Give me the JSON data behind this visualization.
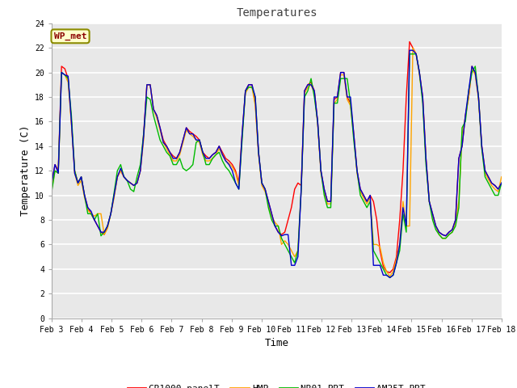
{
  "title": "Temperatures",
  "xlabel": "Time",
  "ylabel": "Temperature (C)",
  "ylim": [
    0,
    24
  ],
  "yticks": [
    0,
    2,
    4,
    6,
    8,
    10,
    12,
    14,
    16,
    18,
    20,
    22,
    24
  ],
  "x_labels": [
    "Feb 3",
    "Feb 4",
    "Feb 5",
    "Feb 6",
    "Feb 7",
    "Feb 8",
    "Feb 9",
    "Feb 10",
    "Feb 11",
    "Feb 12",
    "Feb 13",
    "Feb 14",
    "Feb 15",
    "Feb 16",
    "Feb 17",
    "Feb 18"
  ],
  "annotation": "WP_met",
  "fig_bg_color": "#ffffff",
  "plot_bg_color": "#e8e8e8",
  "grid_color": "#ffffff",
  "line_colors": {
    "CR1000 panelT": "#ff0000",
    "HMP": "#ffa500",
    "NR01 PRT": "#00bb00",
    "AM25T PRT": "#0000cc"
  },
  "line_width": 1.0,
  "cr1000": [
    11.0,
    12.5,
    12.0,
    20.5,
    20.3,
    19.5,
    16.0,
    12.0,
    11.0,
    11.5,
    10.0,
    9.0,
    8.5,
    8.0,
    7.5,
    7.0,
    6.8,
    7.5,
    8.5,
    10.0,
    11.5,
    12.0,
    11.5,
    11.2,
    11.0,
    10.8,
    11.0,
    12.0,
    15.0,
    19.0,
    19.0,
    17.0,
    16.5,
    15.5,
    14.5,
    14.0,
    13.5,
    13.2,
    13.0,
    13.5,
    14.5,
    15.5,
    15.2,
    15.0,
    14.8,
    14.5,
    13.5,
    13.2,
    13.0,
    13.3,
    13.5,
    14.0,
    13.5,
    13.0,
    12.8,
    12.5,
    12.0,
    11.0,
    15.0,
    18.5,
    19.0,
    19.0,
    17.5,
    13.5,
    11.0,
    10.5,
    9.5,
    8.5,
    7.5,
    7.0,
    6.8,
    7.0,
    8.0,
    9.0,
    10.5,
    11.0,
    10.8,
    18.5,
    19.0,
    19.2,
    18.5,
    16.0,
    12.0,
    10.5,
    9.5,
    9.5,
    17.8,
    18.0,
    20.0,
    20.0,
    18.0,
    17.5,
    15.0,
    12.0,
    10.5,
    10.0,
    9.5,
    10.0,
    9.5,
    8.0,
    5.5,
    4.2,
    3.8,
    3.7,
    4.0,
    5.0,
    8.0,
    12.0,
    18.0,
    22.5,
    22.0,
    21.5,
    20.0,
    18.0,
    13.0,
    9.5,
    8.5,
    7.5,
    7.0,
    6.8,
    6.7,
    7.0,
    7.2,
    8.0,
    13.0,
    14.0,
    16.5,
    18.0,
    20.5,
    20.0,
    18.0,
    14.0,
    12.0,
    11.5,
    11.0,
    10.8,
    10.5,
    11.0
  ],
  "hmp": [
    10.5,
    12.0,
    11.8,
    20.0,
    19.8,
    19.2,
    15.8,
    11.8,
    10.8,
    11.2,
    9.8,
    8.8,
    8.5,
    8.3,
    8.5,
    8.5,
    6.8,
    7.3,
    8.5,
    9.8,
    11.5,
    12.0,
    11.5,
    11.2,
    11.0,
    10.8,
    11.0,
    12.0,
    14.5,
    19.0,
    19.0,
    17.0,
    16.3,
    15.3,
    14.3,
    13.8,
    13.3,
    12.8,
    12.8,
    13.3,
    14.3,
    15.3,
    15.0,
    14.8,
    14.5,
    14.3,
    13.3,
    12.8,
    12.8,
    13.0,
    13.3,
    13.8,
    13.3,
    12.8,
    12.6,
    12.3,
    11.8,
    10.8,
    14.8,
    18.3,
    18.8,
    18.8,
    17.3,
    13.3,
    10.8,
    10.3,
    9.3,
    8.3,
    7.8,
    7.5,
    6.0,
    6.3,
    6.0,
    5.5,
    5.0,
    5.5,
    10.5,
    18.3,
    18.8,
    19.0,
    18.3,
    15.8,
    11.8,
    10.3,
    9.3,
    9.3,
    17.5,
    17.8,
    19.8,
    19.8,
    17.8,
    17.3,
    14.8,
    11.8,
    10.3,
    9.8,
    9.3,
    9.8,
    6.0,
    6.0,
    5.8,
    4.5,
    3.8,
    3.4,
    3.8,
    4.8,
    6.0,
    9.5,
    7.5,
    7.5,
    22.0,
    21.5,
    19.8,
    17.8,
    12.8,
    9.5,
    8.3,
    7.5,
    6.8,
    6.5,
    6.5,
    6.8,
    7.0,
    7.8,
    9.5,
    15.0,
    16.3,
    18.0,
    20.3,
    19.8,
    17.8,
    13.8,
    11.8,
    11.3,
    10.8,
    10.5,
    10.3,
    11.5
  ],
  "nr01": [
    10.3,
    12.0,
    11.8,
    20.0,
    19.8,
    19.5,
    16.5,
    12.0,
    11.0,
    11.5,
    10.0,
    8.5,
    8.5,
    8.0,
    8.5,
    6.7,
    7.0,
    7.5,
    8.5,
    10.2,
    12.0,
    12.5,
    11.5,
    11.2,
    10.5,
    10.3,
    11.5,
    12.5,
    15.0,
    18.0,
    17.8,
    16.5,
    15.5,
    14.5,
    14.0,
    13.5,
    13.2,
    12.5,
    12.5,
    13.0,
    12.2,
    12.0,
    12.2,
    12.5,
    14.3,
    14.5,
    13.5,
    12.5,
    12.5,
    13.0,
    13.3,
    13.5,
    12.8,
    12.3,
    12.0,
    11.5,
    11.0,
    10.5,
    14.5,
    18.5,
    18.8,
    18.8,
    18.0,
    13.5,
    11.0,
    10.5,
    9.0,
    8.0,
    7.5,
    7.5,
    6.5,
    6.0,
    5.5,
    5.0,
    4.5,
    5.5,
    10.5,
    18.0,
    18.5,
    19.5,
    18.0,
    16.0,
    12.0,
    10.0,
    9.0,
    9.0,
    17.5,
    17.5,
    19.5,
    19.5,
    19.5,
    17.5,
    14.5,
    12.0,
    10.0,
    9.5,
    9.0,
    9.5,
    5.5,
    5.0,
    4.5,
    4.0,
    3.5,
    3.3,
    3.5,
    4.5,
    5.5,
    8.5,
    7.0,
    21.5,
    21.5,
    21.5,
    20.0,
    17.5,
    12.5,
    9.5,
    8.0,
    7.2,
    6.8,
    6.5,
    6.5,
    6.8,
    7.0,
    7.5,
    9.0,
    15.5,
    16.0,
    18.5,
    20.0,
    20.5,
    18.0,
    13.8,
    11.5,
    11.0,
    10.5,
    10.0,
    10.0,
    11.0
  ],
  "am25t": [
    11.0,
    12.5,
    11.8,
    20.0,
    19.8,
    19.7,
    16.0,
    11.8,
    11.0,
    11.5,
    10.0,
    9.0,
    8.7,
    8.0,
    7.5,
    7.0,
    7.0,
    7.5,
    8.5,
    10.0,
    11.5,
    12.2,
    11.5,
    11.2,
    11.0,
    10.8,
    11.0,
    12.0,
    14.8,
    19.0,
    19.0,
    17.0,
    16.5,
    15.5,
    14.3,
    14.0,
    13.5,
    13.0,
    13.0,
    13.5,
    14.5,
    15.5,
    15.0,
    15.0,
    14.5,
    14.5,
    13.5,
    13.0,
    13.0,
    13.3,
    13.5,
    14.0,
    13.3,
    12.8,
    12.5,
    12.0,
    11.0,
    10.5,
    15.0,
    18.5,
    19.0,
    19.0,
    18.0,
    13.5,
    11.0,
    10.5,
    9.5,
    8.5,
    7.5,
    7.0,
    6.7,
    6.8,
    6.8,
    4.3,
    4.3,
    5.0,
    10.5,
    18.5,
    19.0,
    19.0,
    18.5,
    16.0,
    12.0,
    10.5,
    9.5,
    9.5,
    18.0,
    18.0,
    20.0,
    20.0,
    18.0,
    18.0,
    15.0,
    12.0,
    10.5,
    10.0,
    9.5,
    10.0,
    4.3,
    4.3,
    4.3,
    3.5,
    3.5,
    3.3,
    3.5,
    4.5,
    6.0,
    9.0,
    7.5,
    21.8,
    21.8,
    21.5,
    20.0,
    18.0,
    13.0,
    9.5,
    8.5,
    7.5,
    7.0,
    6.8,
    6.7,
    7.0,
    7.2,
    8.0,
    13.0,
    14.0,
    16.5,
    18.5,
    20.5,
    20.0,
    18.0,
    14.0,
    12.0,
    11.5,
    11.0,
    10.8,
    10.5,
    11.0
  ]
}
